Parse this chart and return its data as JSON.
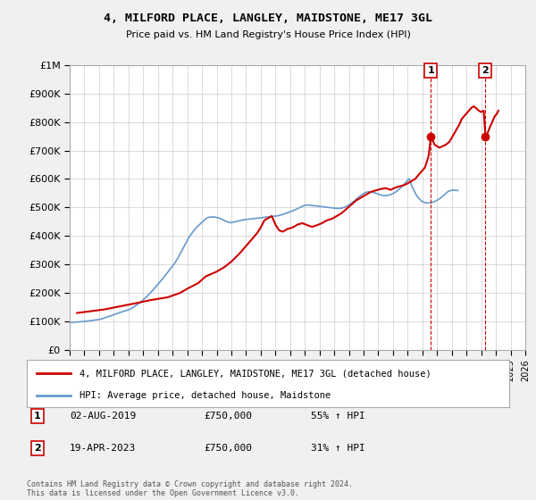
{
  "title": "4, MILFORD PLACE, LANGLEY, MAIDSTONE, ME17 3GL",
  "subtitle": "Price paid vs. HM Land Registry's House Price Index (HPI)",
  "legend_house": "4, MILFORD PLACE, LANGLEY, MAIDSTONE, ME17 3GL (detached house)",
  "legend_hpi": "HPI: Average price, detached house, Maidstone",
  "annotation1_label": "1",
  "annotation1_date": "02-AUG-2019",
  "annotation1_price": "£750,000",
  "annotation1_pct": "55% ↑ HPI",
  "annotation2_label": "2",
  "annotation2_date": "19-APR-2023",
  "annotation2_price": "£750,000",
  "annotation2_pct": "31% ↑ HPI",
  "footer": "Contains HM Land Registry data © Crown copyright and database right 2024.\nThis data is licensed under the Open Government Licence v3.0.",
  "house_color": "#cc0000",
  "hpi_color": "#6699cc",
  "annotation_color": "#cc0000",
  "background_color": "#f0f0f0",
  "plot_bg_color": "#ffffff",
  "ylim": [
    0,
    1000000
  ],
  "yticks": [
    0,
    100000,
    200000,
    300000,
    400000,
    500000,
    600000,
    700000,
    800000,
    900000,
    1000000
  ],
  "xlim_start": 1995,
  "xlim_end": 2026,
  "xticks": [
    1995,
    1996,
    1997,
    1998,
    1999,
    2000,
    2001,
    2002,
    2003,
    2004,
    2005,
    2006,
    2007,
    2008,
    2009,
    2010,
    2011,
    2012,
    2013,
    2014,
    2015,
    2016,
    2017,
    2018,
    2019,
    2020,
    2021,
    2022,
    2023,
    2024,
    2025,
    2026
  ],
  "sale1_x": 2019.58,
  "sale1_y": 750000,
  "sale2_x": 2023.29,
  "sale2_y": 750000,
  "hpi_y": [
    96000,
    96500,
    97000,
    97500,
    97800,
    98000,
    98200,
    98500,
    98800,
    99200,
    99600,
    100000,
    100500,
    101000,
    101500,
    102000,
    102500,
    103000,
    103500,
    104000,
    104600,
    105200,
    105800,
    106500,
    107000,
    108000,
    109000,
    110500,
    112000,
    113500,
    115000,
    116500,
    118000,
    119500,
    121000,
    122500,
    124000,
    125500,
    127000,
    128500,
    130000,
    131500,
    133000,
    134500,
    135800,
    137000,
    138200,
    139500,
    141000,
    143000,
    145000,
    147500,
    150000,
    153000,
    156000,
    159000,
    162000,
    165000,
    168500,
    172000,
    176000,
    180000,
    184000,
    188000,
    192000,
    196500,
    201000,
    205500,
    210000,
    215000,
    220000,
    225000,
    230000,
    235000,
    240000,
    245000,
    250500,
    256000,
    261500,
    267000,
    272500,
    278000,
    283500,
    289000,
    294500,
    300000,
    306000,
    313000,
    320000,
    328000,
    336000,
    344000,
    352000,
    360000,
    368000,
    376000,
    384000,
    392000,
    399000,
    405000,
    411000,
    417000,
    422000,
    427000,
    432000,
    436000,
    440000,
    444000,
    448000,
    452000,
    456000,
    460000,
    463000,
    465000,
    466000,
    466500,
    467000,
    467000,
    466500,
    466000,
    465000,
    464000,
    463000,
    461000,
    459000,
    457000,
    455000,
    453000,
    451000,
    449000,
    448000,
    447000,
    447000,
    448000,
    449000,
    450000,
    451000,
    452000,
    453000,
    454000,
    455000,
    456000,
    457000,
    457500,
    458000,
    458500,
    459000,
    459500,
    460000,
    460500,
    461000,
    461500,
    462000,
    462500,
    463000,
    463500,
    464000,
    464500,
    465000,
    465500,
    466000,
    466500,
    467000,
    467500,
    468000,
    468500,
    469000,
    469500,
    470000,
    470500,
    471000,
    472000,
    473000,
    474500,
    476000,
    477500,
    479000,
    480500,
    482000,
    483500,
    485000,
    486500,
    488000,
    490000,
    492000,
    494000,
    496000,
    498000,
    500000,
    502000,
    504000,
    506000,
    507500,
    508500,
    509000,
    508500,
    508000,
    507500,
    507000,
    506500,
    506000,
    505500,
    505000,
    504500,
    504000,
    503500,
    503000,
    502500,
    502000,
    501500,
    501000,
    500500,
    500000,
    499500,
    499000,
    498500,
    498000,
    497500,
    497000,
    497000,
    497200,
    497500,
    498000,
    499000,
    500500,
    502000,
    504000,
    506500,
    509000,
    512000,
    515000,
    518500,
    522000,
    525500,
    529000,
    532500,
    536000,
    539500,
    543000,
    546000,
    549000,
    551500,
    553500,
    554500,
    555000,
    555000,
    554500,
    554000,
    553000,
    551500,
    550000,
    548500,
    547000,
    545500,
    544000,
    543000,
    542500,
    542000,
    542000,
    542500,
    543000,
    544000,
    545000,
    547000,
    549000,
    551000,
    554000,
    557000,
    560500,
    564000,
    568000,
    572000,
    576500,
    581000,
    586000,
    591000,
    596000,
    601000,
    590000,
    580000,
    570000,
    561000,
    552000,
    544000,
    538000,
    532500,
    528000,
    524000,
    521000,
    519000,
    517500,
    516500,
    516000,
    516000,
    516500,
    517000,
    518000,
    519500,
    521000,
    523000,
    525500,
    528000,
    531000,
    534000,
    537500,
    541000,
    545000,
    549000,
    553000,
    556000,
    558000,
    559500,
    560500,
    561000,
    561000,
    560500,
    560000,
    559500
  ],
  "house_x": [
    1995.5,
    1997.33,
    1999.58,
    2000.5,
    2001.67,
    2002.5,
    2003.0,
    2003.75,
    2004.25,
    2005.0,
    2005.5,
    2006.0,
    2006.58,
    2007.17,
    2007.75,
    2008.0,
    2008.25,
    2008.75,
    2009.0,
    2009.25,
    2009.5,
    2009.83,
    2010.17,
    2010.5,
    2010.83,
    2011.17,
    2011.5,
    2011.83,
    2012.17,
    2012.5,
    2012.83,
    2013.17,
    2013.5,
    2013.83,
    2014.17,
    2014.5,
    2014.83,
    2015.17,
    2015.5,
    2015.83,
    2016.17,
    2016.5,
    2016.83,
    2017.17,
    2017.5,
    2017.83,
    2018.17,
    2018.5,
    2018.83,
    2019.17,
    2019.42,
    2019.58,
    2019.83,
    2020.17,
    2020.58,
    2020.83,
    2021.17,
    2021.5,
    2021.67,
    2021.83,
    2022.0,
    2022.17,
    2022.33,
    2022.5,
    2022.67,
    2022.83,
    2023.0,
    2023.17,
    2023.29,
    2023.42,
    2023.58,
    2023.75,
    2023.92,
    2024.08,
    2024.17
  ],
  "house_y": [
    130000,
    142000,
    165000,
    175000,
    185000,
    200000,
    215000,
    235000,
    258000,
    275000,
    290000,
    310000,
    340000,
    375000,
    410000,
    430000,
    455000,
    470000,
    440000,
    420000,
    415000,
    425000,
    430000,
    440000,
    445000,
    438000,
    432000,
    438000,
    445000,
    455000,
    460000,
    470000,
    480000,
    495000,
    510000,
    525000,
    535000,
    545000,
    555000,
    560000,
    565000,
    568000,
    562000,
    570000,
    575000,
    580000,
    590000,
    600000,
    620000,
    640000,
    680000,
    750000,
    720000,
    710000,
    720000,
    730000,
    760000,
    790000,
    810000,
    820000,
    830000,
    840000,
    850000,
    855000,
    848000,
    840000,
    835000,
    840000,
    750000,
    760000,
    780000,
    800000,
    820000,
    830000,
    840000
  ]
}
